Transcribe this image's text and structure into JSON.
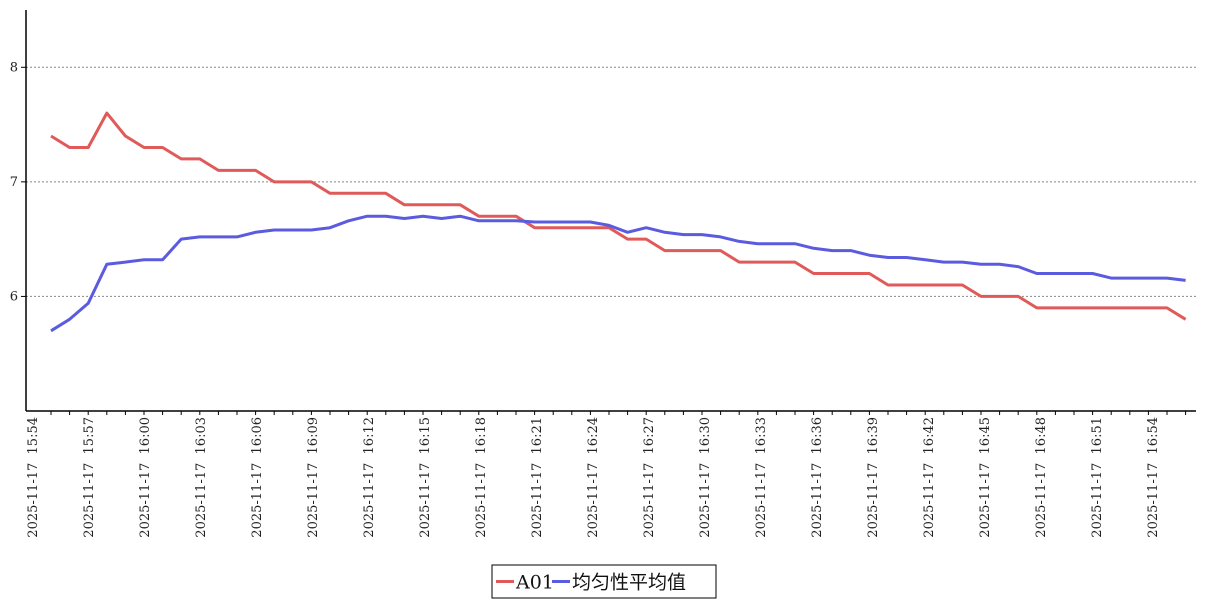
{
  "chart_data": {
    "type": "line",
    "title": "",
    "xlabel": "",
    "ylabel": "",
    "ylim": [
      5.0,
      8.5
    ],
    "yticks": [
      6,
      7,
      8
    ],
    "grid": "horizontal dotted",
    "legend_position": "bottom-center",
    "x": [
      "2025-11-17 15:54",
      "2025-11-17 15:55",
      "2025-11-17 15:56",
      "2025-11-17 15:57",
      "2025-11-17 15:58",
      "2025-11-17 15:59",
      "2025-11-17 16:00",
      "2025-11-17 16:01",
      "2025-11-17 16:02",
      "2025-11-17 16:03",
      "2025-11-17 16:04",
      "2025-11-17 16:05",
      "2025-11-17 16:06",
      "2025-11-17 16:07",
      "2025-11-17 16:08",
      "2025-11-17 16:09",
      "2025-11-17 16:10",
      "2025-11-17 16:11",
      "2025-11-17 16:12",
      "2025-11-17 16:13",
      "2025-11-17 16:14",
      "2025-11-17 16:15",
      "2025-11-17 16:16",
      "2025-11-17 16:17",
      "2025-11-17 16:18",
      "2025-11-17 16:19",
      "2025-11-17 16:20",
      "2025-11-17 16:21",
      "2025-11-17 16:22",
      "2025-11-17 16:23",
      "2025-11-17 16:24",
      "2025-11-17 16:25",
      "2025-11-17 16:26",
      "2025-11-17 16:27",
      "2025-11-17 16:28",
      "2025-11-17 16:29",
      "2025-11-17 16:30",
      "2025-11-17 16:31",
      "2025-11-17 16:32",
      "2025-11-17 16:33",
      "2025-11-17 16:34",
      "2025-11-17 16:35",
      "2025-11-17 16:36",
      "2025-11-17 16:37",
      "2025-11-17 16:38",
      "2025-11-17 16:39",
      "2025-11-17 16:40",
      "2025-11-17 16:41",
      "2025-11-17 16:42",
      "2025-11-17 16:43",
      "2025-11-17 16:44",
      "2025-11-17 16:45",
      "2025-11-17 16:46",
      "2025-11-17 16:47",
      "2025-11-17 16:48",
      "2025-11-17 16:49",
      "2025-11-17 16:50",
      "2025-11-17 16:51",
      "2025-11-17 16:52",
      "2025-11-17 16:53",
      "2025-11-17 16:54",
      "2025-11-17 16:55"
    ],
    "xtick_labels": [
      "2025-11-17 15:54",
      "2025-11-17 15:57",
      "2025-11-17 16:00",
      "2025-11-17 16:03",
      "2025-11-17 16:06",
      "2025-11-17 16:09",
      "2025-11-17 16:12",
      "2025-11-17 16:15",
      "2025-11-17 16:18",
      "2025-11-17 16:21",
      "2025-11-17 16:24",
      "2025-11-17 16:27",
      "2025-11-17 16:30",
      "2025-11-17 16:33",
      "2025-11-17 16:36",
      "2025-11-17 16:39",
      "2025-11-17 16:42",
      "2025-11-17 16:45",
      "2025-11-17 16:48",
      "2025-11-17 16:51",
      "2025-11-17 16:54"
    ],
    "series": [
      {
        "name": "A01",
        "color": "#e05a5a",
        "values": [
          7.4,
          7.3,
          7.3,
          7.6,
          7.4,
          7.3,
          7.3,
          7.2,
          7.2,
          7.1,
          7.1,
          7.1,
          7.0,
          7.0,
          7.0,
          6.9,
          6.9,
          6.9,
          6.9,
          6.8,
          6.8,
          6.8,
          6.8,
          6.7,
          6.7,
          6.7,
          6.6,
          6.6,
          6.6,
          6.6,
          6.6,
          6.5,
          6.5,
          6.4,
          6.4,
          6.4,
          6.4,
          6.3,
          6.3,
          6.3,
          6.3,
          6.2,
          6.2,
          6.2,
          6.2,
          6.1,
          6.1,
          6.1,
          6.1,
          6.1,
          6.0,
          6.0,
          6.0,
          5.9,
          5.9,
          5.9,
          5.9,
          5.9,
          5.9,
          5.9,
          5.9,
          5.8
        ]
      },
      {
        "name": "均匀性平均值",
        "color": "#5b5be0",
        "values": [
          5.7,
          5.8,
          5.94,
          6.28,
          6.3,
          6.32,
          6.32,
          6.5,
          6.52,
          6.52,
          6.52,
          6.56,
          6.58,
          6.58,
          6.58,
          6.6,
          6.66,
          6.7,
          6.7,
          6.68,
          6.7,
          6.68,
          6.7,
          6.66,
          6.66,
          6.66,
          6.65,
          6.65,
          6.65,
          6.65,
          6.62,
          6.56,
          6.6,
          6.56,
          6.54,
          6.54,
          6.52,
          6.48,
          6.46,
          6.46,
          6.46,
          6.42,
          6.4,
          6.4,
          6.36,
          6.34,
          6.34,
          6.32,
          6.3,
          6.3,
          6.28,
          6.28,
          6.26,
          6.2,
          6.2,
          6.2,
          6.2,
          6.16,
          6.16,
          6.16,
          6.16,
          6.14
        ]
      }
    ]
  }
}
